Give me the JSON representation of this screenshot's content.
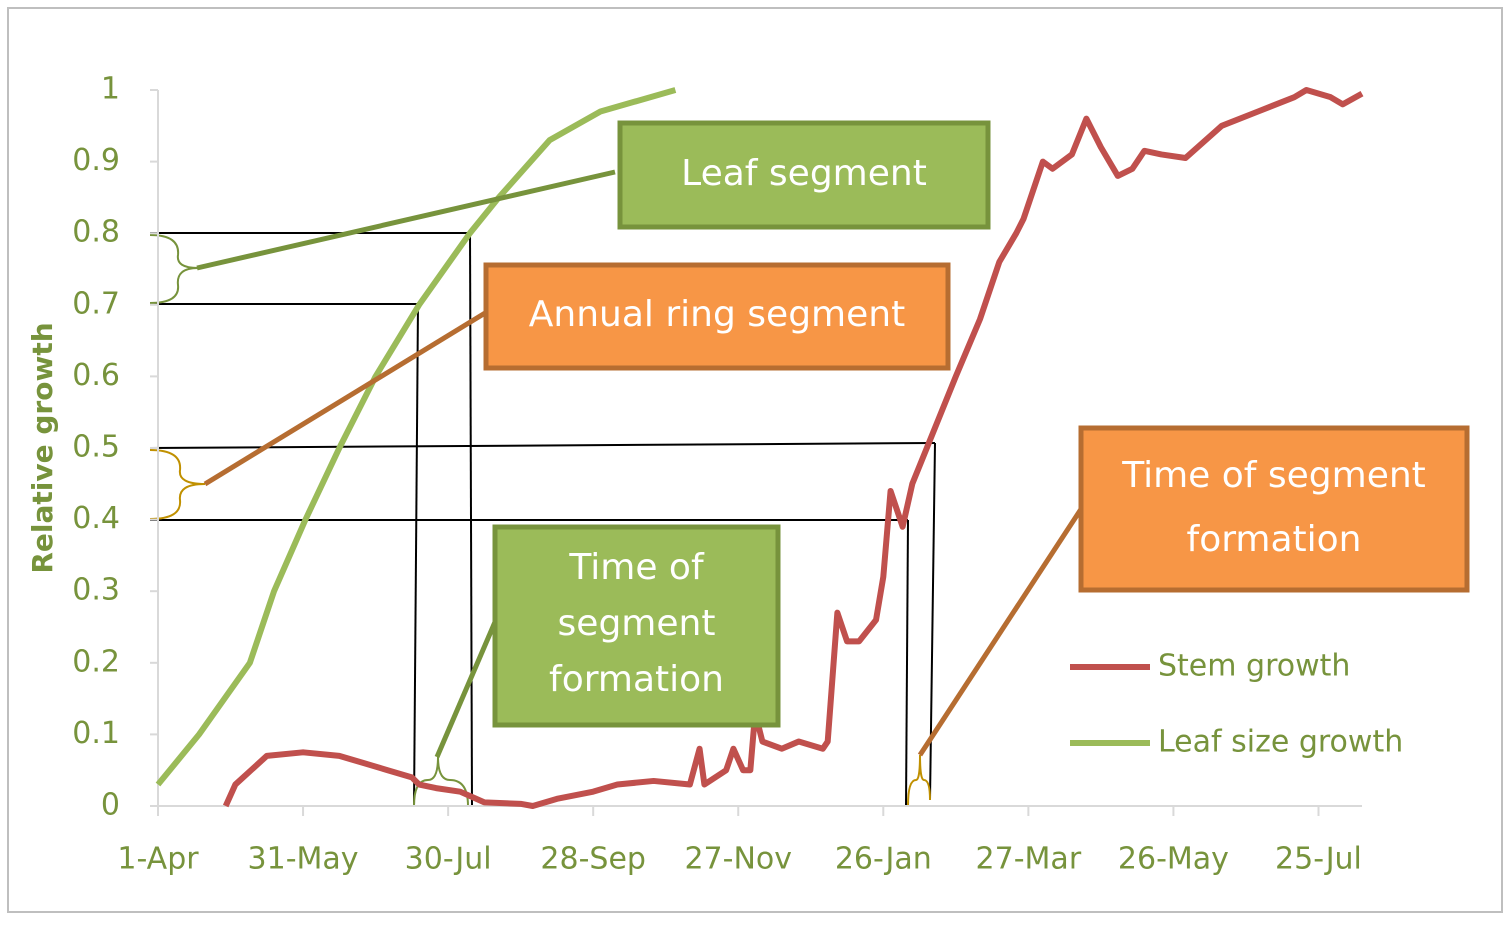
{
  "chart_data": {
    "type": "line",
    "ylabel": "Relative growth",
    "xlim": [
      0,
      498
    ],
    "xticks": [
      {
        "value": 0,
        "label": "1-Apr"
      },
      {
        "value": 60,
        "label": "31-May"
      },
      {
        "value": 120,
        "label": "30-Jul"
      },
      {
        "value": 180,
        "label": "28-Sep"
      },
      {
        "value": 240,
        "label": "27-Nov"
      },
      {
        "value": 300,
        "label": "26-Jan"
      },
      {
        "value": 360,
        "label": "27-Mar"
      },
      {
        "value": 420,
        "label": "26-May"
      },
      {
        "value": 480,
        "label": "25-Jul"
      }
    ],
    "ylim": [
      0,
      1
    ],
    "yticks": [
      0,
      0.1,
      0.2,
      0.3,
      0.4,
      0.5,
      0.6,
      0.7,
      0.8,
      0.9,
      1
    ],
    "legend": "right",
    "series": [
      {
        "name": "Stem growth",
        "color": "#c0504d",
        "x": [
          28,
          32,
          45,
          60,
          75,
          85,
          95,
          105,
          108,
          115,
          125,
          135,
          150,
          155,
          165,
          180,
          190,
          205,
          220,
          224,
          226,
          235,
          238,
          242,
          245,
          247,
          250,
          258,
          265,
          275,
          277,
          281,
          285,
          290,
          297,
          300,
          303,
          308,
          312,
          318,
          330,
          340,
          348,
          355,
          358,
          366,
          370,
          378,
          384,
          390,
          397,
          403,
          408,
          415,
          425,
          440,
          455,
          470,
          475,
          485,
          490,
          498
        ],
        "values": [
          0,
          0.03,
          0.07,
          0.075,
          0.07,
          0.06,
          0.05,
          0.04,
          0.03,
          0.025,
          0.02,
          0.005,
          0.003,
          0,
          0.01,
          0.02,
          0.03,
          0.035,
          0.03,
          0.08,
          0.03,
          0.05,
          0.08,
          0.05,
          0.05,
          0.13,
          0.09,
          0.08,
          0.09,
          0.08,
          0.09,
          0.27,
          0.23,
          0.23,
          0.26,
          0.32,
          0.44,
          0.39,
          0.45,
          0.5,
          0.6,
          0.68,
          0.76,
          0.8,
          0.82,
          0.9,
          0.89,
          0.91,
          0.96,
          0.92,
          0.88,
          0.89,
          0.915,
          0.91,
          0.905,
          0.95,
          0.97,
          0.99,
          1,
          0.99,
          0.98,
          0.995
        ]
      },
      {
        "name": "Leaf size growth",
        "color": "#9bbb59",
        "x": [
          0,
          17,
          38,
          48,
          61,
          75,
          90,
          108,
          129,
          141,
          162,
          183,
          214
        ],
        "values": [
          0.03,
          0.1,
          0.2,
          0.3,
          0.4,
          0.5,
          0.6,
          0.7,
          0.8,
          0.85,
          0.93,
          0.97,
          1
        ]
      }
    ],
    "annotations": [
      "Leaf segment",
      "Annual ring segment",
      "Time of segment formation",
      "Time of segment formation"
    ]
  }
}
